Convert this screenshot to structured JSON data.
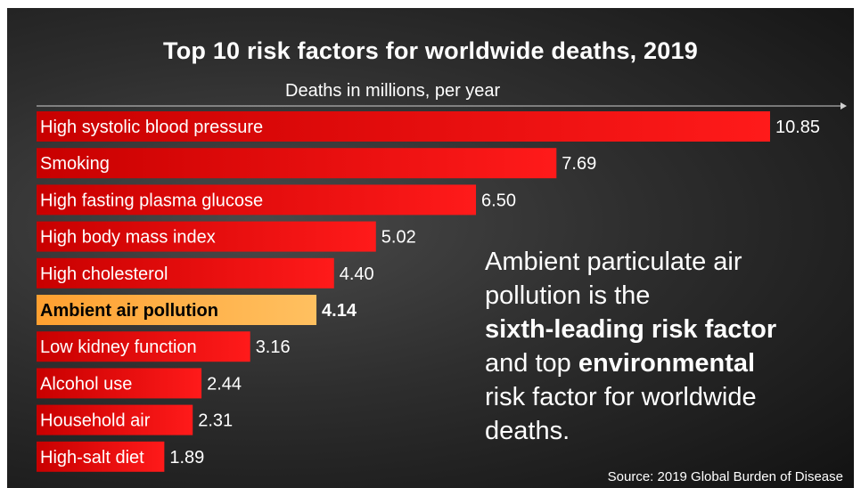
{
  "chart_data": {
    "type": "bar",
    "orientation": "horizontal",
    "title": "Top 10 risk factors for worldwide deaths, 2019",
    "xlabel": "Deaths in millions, per year",
    "categories": [
      "High systolic blood pressure",
      "Smoking",
      "High fasting plasma glucose",
      "High body mass index",
      "High cholesterol",
      "Ambient air pollution",
      "Low kidney function",
      "Alcohol use",
      "Household air",
      "High-salt diet"
    ],
    "values": [
      10.85,
      7.69,
      6.5,
      5.02,
      4.4,
      4.14,
      3.16,
      2.44,
      2.31,
      1.89
    ],
    "value_labels": [
      "10.85",
      "7.69",
      "6.50",
      "5.02",
      "4.40",
      "4.14",
      "3.16",
      "2.44",
      "2.31",
      "1.89"
    ],
    "highlight_index": 5,
    "xlim": [
      0,
      10.85
    ],
    "grid": false,
    "colors": {
      "bar_dark": "#c80000",
      "bar_light": "#ff1a1a",
      "highlight_dark": "#ffa030",
      "highlight_light": "#ffc060",
      "highlight_text": "#000000",
      "text": "#ffffff"
    }
  },
  "annotation": {
    "line1": "Ambient particulate air",
    "line2": "pollution is the",
    "line3_bold": "sixth-leading risk factor",
    "line4_pre": "and top ",
    "line4_bold": "environmental",
    "line5": "risk factor for worldwide",
    "line6": "deaths."
  },
  "source": "Source: 2019 Global Burden of Disease"
}
